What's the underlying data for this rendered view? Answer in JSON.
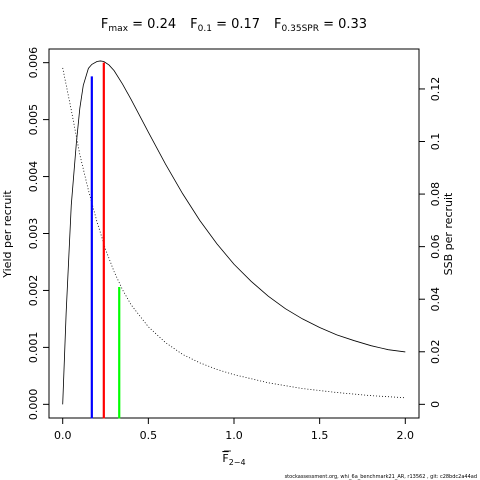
{
  "title": {
    "fmax_main": "F",
    "fmax_sub": "max",
    "fmax_value": " = 0.24",
    "f01_main": "F",
    "f01_sub": "0.1",
    "f01_value": " = 0.17",
    "f035_main": "F",
    "f035_sub": "0.35SPR",
    "f035_value": " = 0.33"
  },
  "footer": "stockassessment.org, whi_6a_benchmark21_AR, r13562 , git: c28bdc2a44ad",
  "chart_data": {
    "type": "line",
    "xlabel_main": "F",
    "xlabel_sub": "2−4",
    "ylabel_left": "Yield per recruit",
    "ylabel_right": "SSB per recruit",
    "xlim": [
      -0.08,
      2.08
    ],
    "ylim_left": [
      -0.00024,
      0.00624
    ],
    "ylim_right": [
      -0.0052,
      0.1352
    ],
    "x_ticks": [
      0,
      0.5,
      1.0,
      1.5,
      2.0
    ],
    "x_tick_labels": [
      "0.0",
      "0.5",
      "1.0",
      "1.5",
      "2.0"
    ],
    "y_left_ticks": [
      0,
      0.001,
      0.002,
      0.003,
      0.004,
      0.005,
      0.006
    ],
    "y_left_tick_labels": [
      "0.000",
      "0.001",
      "0.002",
      "0.003",
      "0.004",
      "0.005",
      "0.006"
    ],
    "y_right_ticks": [
      0,
      0.02,
      0.04,
      0.06,
      0.08,
      0.1,
      0.12
    ],
    "y_right_tick_labels": [
      "0",
      "0.02",
      "0.04",
      "0.06",
      "0.08",
      "0.1",
      "0.12"
    ],
    "series": [
      {
        "axis": "left",
        "style": "solid",
        "color": "#000000",
        "x": [
          0,
          0.02,
          0.05,
          0.08,
          0.1,
          0.12,
          0.15,
          0.17,
          0.2,
          0.22,
          0.24,
          0.27,
          0.3,
          0.35,
          0.4,
          0.5,
          0.6,
          0.7,
          0.8,
          0.9,
          1.0,
          1.1,
          1.2,
          1.3,
          1.4,
          1.5,
          1.6,
          1.7,
          1.8,
          1.9,
          2.0
        ],
        "values": [
          0.0,
          0.0016,
          0.0035,
          0.0046,
          0.0052,
          0.0056,
          0.0059,
          0.00597,
          0.00602,
          0.00603,
          0.00602,
          0.00596,
          0.00586,
          0.00562,
          0.00535,
          0.00478,
          0.00422,
          0.0037,
          0.00323,
          0.00282,
          0.00246,
          0.00216,
          0.0019,
          0.00168,
          0.0015,
          0.00135,
          0.00122,
          0.00112,
          0.00103,
          0.00096,
          0.00092
        ]
      },
      {
        "axis": "right",
        "style": "dotted",
        "color": "#000000",
        "x": [
          0,
          0.05,
          0.1,
          0.15,
          0.2,
          0.25,
          0.3,
          0.35,
          0.4,
          0.5,
          0.6,
          0.7,
          0.8,
          0.9,
          1.0,
          1.2,
          1.4,
          1.6,
          1.8,
          2.0
        ],
        "values": [
          0.128,
          0.112,
          0.095,
          0.0815,
          0.0695,
          0.059,
          0.0505,
          0.0435,
          0.0378,
          0.0295,
          0.0235,
          0.019,
          0.0158,
          0.0133,
          0.0113,
          0.0082,
          0.006,
          0.0045,
          0.0033,
          0.0025
        ]
      }
    ],
    "reference_lines": [
      {
        "name": "F0.1",
        "x": 0.17,
        "y_left": 0.00576,
        "color": "#0000ff"
      },
      {
        "name": "Fmax",
        "x": 0.24,
        "y_left": 0.006,
        "color": "#ff0000"
      },
      {
        "name": "F0.35SPR",
        "x": 0.33,
        "y_left": 0.00206,
        "color": "#00ff00"
      }
    ]
  }
}
